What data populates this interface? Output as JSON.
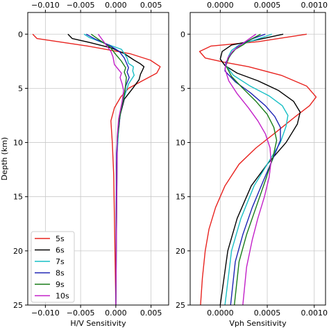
{
  "chart_data": [
    {
      "type": "line",
      "xlabel": "H/V Sensitivity",
      "ylabel": "Depth (km)",
      "xlim": [
        -0.0125,
        0.0075
      ],
      "ylim": [
        25,
        -2
      ],
      "xticks": [
        -0.01,
        -0.005,
        0,
        0.005
      ],
      "xtick_labels_bottom": [
        "−0.010",
        "−0.005",
        "0.000",
        "0.005"
      ],
      "xtick_labels_top": [
        "−0.010",
        "−0.005",
        "0.000",
        "0.005"
      ],
      "yticks": [
        0,
        5,
        10,
        15,
        20,
        25
      ],
      "ytick_labels": [
        "0",
        "5",
        "10",
        "15",
        "20",
        "25"
      ],
      "grid": true,
      "legend_position": "lower-left",
      "series": [
        {
          "name": "5s",
          "color": "#e8231f",
          "x": [
            -0.0118,
            -0.0112,
            -0.004,
            0.002,
            0.0049,
            0.0063,
            0.0058,
            0.0035,
            0.0018,
            0.0007,
            -0.0002,
            -0.0007,
            -0.0005,
            -0.0003,
            0.0
          ],
          "y": [
            0,
            0.4,
            1.1,
            1.8,
            2.4,
            3.0,
            3.6,
            4.4,
            5.0,
            5.8,
            6.8,
            8.0,
            10,
            13,
            25
          ]
        },
        {
          "name": "6s",
          "color": "#000000",
          "x": [
            -0.0068,
            -0.0062,
            -0.0035,
            -0.0005,
            0.0012,
            0.0026,
            0.0034,
            0.004,
            0.0038,
            0.0035,
            0.0033,
            0.0024,
            0.0012,
            0.0006,
            0.0003,
            0.0001,
            0.0
          ],
          "y": [
            0,
            0.4,
            0.8,
            1.3,
            1.8,
            2.4,
            2.7,
            3.0,
            3.3,
            3.7,
            4.2,
            5.0,
            6.0,
            7.5,
            9.5,
            12,
            25
          ]
        },
        {
          "name": "7s",
          "color": "#17bfc5",
          "x": [
            -0.0045,
            -0.0038,
            -0.0018,
            0.0008,
            0.0016,
            0.0018,
            0.0025,
            0.0024,
            0.0026,
            0.0018,
            0.0012,
            0.0007,
            0.0004,
            0.0002,
            0.0
          ],
          "y": [
            0,
            0.3,
            0.8,
            1.4,
            2.2,
            2.7,
            3.0,
            3.4,
            3.8,
            4.6,
            5.8,
            7.0,
            8.5,
            11,
            25
          ]
        },
        {
          "name": "8s",
          "color": "#1d23b4",
          "x": [
            -0.0042,
            -0.0028,
            -0.001,
            0.0005,
            0.0012,
            0.0016,
            0.0018,
            0.0016,
            0.0019,
            0.0014,
            0.0011,
            0.0007,
            0.0003,
            0.0001,
            0.0
          ],
          "y": [
            0,
            0.5,
            1.0,
            1.6,
            2.2,
            2.8,
            3.1,
            3.5,
            4.0,
            4.8,
            6.0,
            7.2,
            8.8,
            11,
            25
          ]
        },
        {
          "name": "9s",
          "color": "#187c18",
          "x": [
            -0.0035,
            -0.0022,
            -0.0008,
            -0.0001,
            0.0008,
            0.0014,
            0.0012,
            0.0015,
            0.0014,
            0.0012,
            0.0008,
            0.0004,
            0.0002,
            0.0
          ],
          "y": [
            0,
            0.6,
            1.2,
            1.8,
            2.5,
            3.1,
            3.5,
            4.0,
            4.6,
            5.6,
            6.8,
            8.2,
            10,
            25
          ]
        },
        {
          "name": "10s",
          "color": "#c21fc8",
          "x": [
            -0.0025,
            -0.0016,
            -0.0007,
            -0.0004,
            -0.0002,
            0.0003,
            0.0008,
            0.0006,
            0.0009,
            0.0011,
            0.0009,
            0.0004,
            0.0002,
            0.0
          ],
          "y": [
            0,
            0.8,
            1.6,
            2.1,
            2.8,
            3.2,
            3.6,
            4.0,
            4.6,
            5.2,
            6.2,
            7.8,
            9.5,
            25
          ]
        }
      ]
    },
    {
      "type": "line",
      "xlabel": "Vph Sensitivity",
      "ylabel": "",
      "xlim": [
        -0.00032,
        0.00112
      ],
      "ylim": [
        25,
        -2
      ],
      "xticks": [
        0,
        0.0005,
        0.001
      ],
      "xtick_labels_bottom": [
        "0.0000",
        "0.0005",
        "0.0010"
      ],
      "xtick_labels_top": [
        "0.0000",
        "0.0005",
        "0.0010"
      ],
      "yticks": [
        0,
        5,
        10,
        15,
        20,
        25
      ],
      "ytick_labels": [
        "0",
        "5",
        "10",
        "15",
        "20",
        "25"
      ],
      "grid": true,
      "legend_position": "none",
      "series": [
        {
          "name": "5s",
          "color": "#e8231f",
          "x": [
            0.00092,
            0.0004,
            -0.0001,
            -0.00022,
            -0.00016,
            5e-05,
            0.0003,
            0.00065,
            0.00092,
            0.00102,
            0.00095,
            0.0008,
            0.0006,
            0.00038,
            0.0002,
            5e-05,
            -5e-05,
            -0.00012,
            -0.00016,
            -0.00019,
            -0.00021
          ],
          "y": [
            0,
            0.7,
            1.1,
            1.6,
            2.2,
            2.6,
            3.0,
            3.8,
            4.8,
            5.8,
            6.6,
            7.6,
            9.0,
            10.5,
            12,
            14,
            16,
            18,
            20,
            22.5,
            25
          ]
        },
        {
          "name": "6s",
          "color": "#000000",
          "x": [
            0.00067,
            0.00035,
            0.00012,
            2e-05,
            0.0,
            5e-05,
            0.00018,
            0.0004,
            0.00062,
            0.00078,
            0.00085,
            0.00082,
            0.0007,
            0.0005,
            0.00033,
            0.00018,
            8e-05,
            0.0
          ],
          "y": [
            0,
            0.6,
            1.0,
            1.6,
            2.3,
            2.9,
            3.6,
            4.3,
            5.2,
            6.2,
            7.2,
            8.3,
            10,
            12,
            14,
            17,
            20,
            25
          ]
        },
        {
          "name": "7s",
          "color": "#17bfc5",
          "x": [
            0.00055,
            0.00038,
            0.0002,
            0.00012,
            9e-05,
            6e-05,
            0.00014,
            0.00032,
            0.00052,
            0.00066,
            0.00072,
            0.0007,
            0.00064,
            0.0005,
            0.00036,
            0.00022,
            0.00012,
            5e-05
          ],
          "y": [
            0,
            0.5,
            1.0,
            1.5,
            2.0,
            2.9,
            3.8,
            4.8,
            5.7,
            6.6,
            7.5,
            8.5,
            10,
            12,
            14,
            17,
            20,
            25
          ]
        },
        {
          "name": "8s",
          "color": "#1d23b4",
          "x": [
            0.00048,
            0.00035,
            0.00025,
            0.00018,
            0.00012,
            6e-05,
            5e-05,
            0.00016,
            0.00032,
            0.00048,
            0.00058,
            0.00064,
            0.00064,
            0.00056,
            0.00046,
            0.00034,
            0.00024,
            0.00016,
            0.00011
          ],
          "y": [
            0,
            0.4,
            0.8,
            1.2,
            1.8,
            2.6,
            3.4,
            4.4,
            5.4,
            6.6,
            7.6,
            8.6,
            9.8,
            11.5,
            13.5,
            16,
            18.5,
            21,
            25
          ]
        },
        {
          "name": "9s",
          "color": "#187c18",
          "x": [
            0.00043,
            0.00032,
            0.00024,
            0.00016,
            0.0001,
            6e-05,
            0.00012,
            0.00024,
            0.00038,
            0.0005,
            0.00057,
            0.0006,
            0.00056,
            0.00048,
            0.00038,
            0.00028,
            0.0002,
            0.00015
          ],
          "y": [
            0,
            0.5,
            1.0,
            1.4,
            2.0,
            2.9,
            3.9,
            5.0,
            6.2,
            7.4,
            8.6,
            9.8,
            11.4,
            13.5,
            16,
            18.5,
            21,
            25
          ]
        },
        {
          "name": "10s",
          "color": "#c21fc8",
          "x": [
            0.00038,
            0.00028,
            0.0002,
            0.00013,
            8e-05,
            5e-05,
            9e-05,
            0.00018,
            0.0003,
            0.0004,
            0.00048,
            0.00053,
            0.00054,
            0.00052,
            0.00047,
            0.0004,
            0.00034,
            0.00028,
            0.00024
          ],
          "y": [
            0,
            0.6,
            1.1,
            1.6,
            2.2,
            3.2,
            4.3,
            5.5,
            6.8,
            8.0,
            9.2,
            10.5,
            11.8,
            13.2,
            15,
            17,
            19,
            21.5,
            25
          ]
        }
      ]
    }
  ]
}
